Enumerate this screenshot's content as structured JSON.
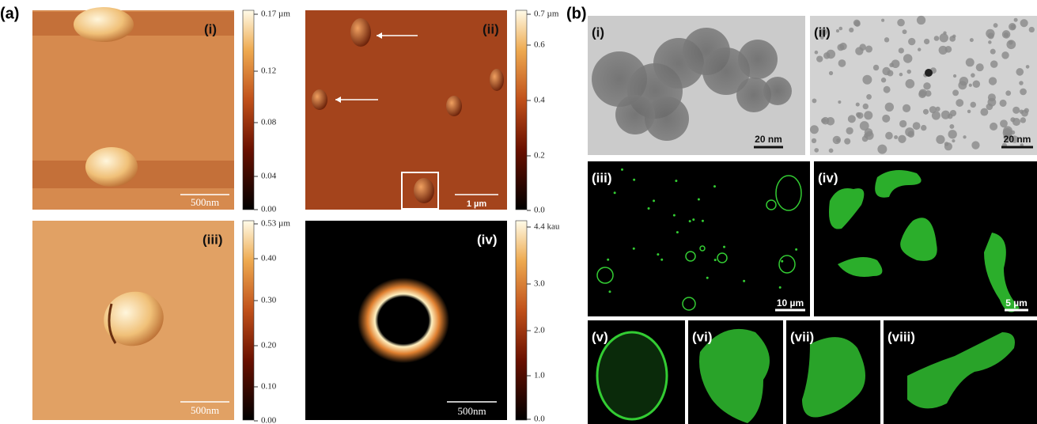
{
  "labels": {
    "a": "(a)",
    "b": "(b)"
  },
  "panel_a": [
    {
      "label": "(i)",
      "colorbar": [
        "0.17 µm",
        "0.12",
        "0.08",
        "0.04",
        "0.00"
      ],
      "scale_bar": "500nm"
    },
    {
      "label": "(ii)",
      "colorbar": [
        "0.7 µm",
        "0.6",
        "0.4",
        "0.2",
        "0.0"
      ],
      "scale_bar": "1 µm"
    },
    {
      "label": "(iii)",
      "colorbar": [
        "0.53 µm",
        "0.40",
        "0.30",
        "0.20",
        "0.10",
        "0.00"
      ],
      "scale_bar": "500nm"
    },
    {
      "label": "(iv)",
      "colorbar": [
        "4.4 kau",
        "3.0",
        "2.0",
        "1.0",
        "0.0"
      ],
      "scale_bar": "500nm"
    }
  ],
  "panel_b": [
    {
      "label": "(i)",
      "scale_bar": "20 nm"
    },
    {
      "label": "(ii)",
      "scale_bar": "20 nm"
    },
    {
      "label": "(iii)",
      "scale_bar": "10 µm"
    },
    {
      "label": "(iv)",
      "scale_bar": "5 µm"
    },
    {
      "label": "(v)"
    },
    {
      "label": "(vi)"
    },
    {
      "label": "(vii)"
    },
    {
      "label": "(viii)"
    }
  ]
}
